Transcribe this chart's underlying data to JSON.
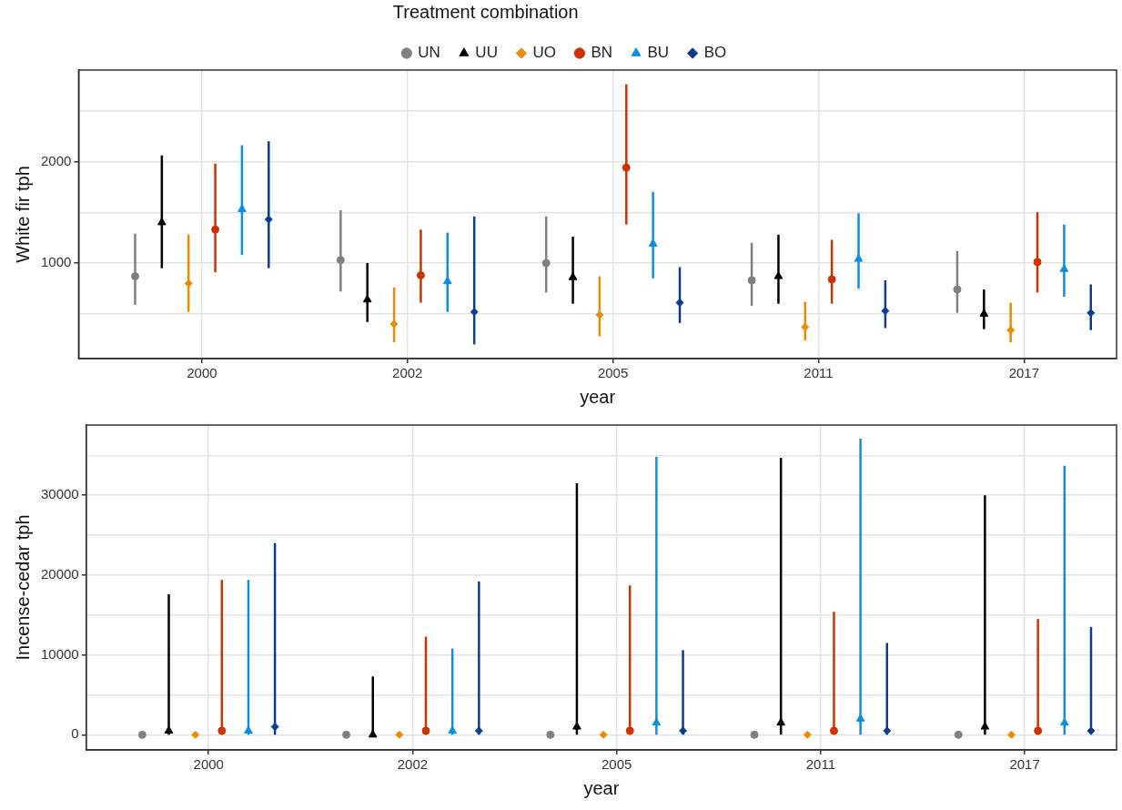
{
  "chart_data": [
    {
      "type": "scatter",
      "xlabel": "year",
      "ylabel": "White fir tph",
      "legend_title": "Treatment combination",
      "legend": "top",
      "grid": true,
      "categories": [
        "2000",
        "2002",
        "2005",
        "2011",
        "2017"
      ],
      "ylim": [
        60,
        2900
      ],
      "yticks": [
        {
          "value": 500,
          "label": null
        },
        1000,
        {
          "value": 1500,
          "label": null
        },
        2000,
        {
          "value": 2500,
          "label": null
        }
      ],
      "series": [
        {
          "name": "UN",
          "color": "#808080",
          "marker": "circle",
          "values": [
            870,
            1030,
            1000,
            830,
            740
          ],
          "errors": [
            [
              590,
              1290
            ],
            [
              720,
              1520
            ],
            [
              710,
              1460
            ],
            [
              580,
              1200
            ],
            [
              510,
              1120
            ]
          ]
        },
        {
          "name": "UU",
          "color": "#000000",
          "marker": "triangle",
          "values": [
            1400,
            640,
            860,
            870,
            500
          ],
          "errors": [
            [
              950,
              2060
            ],
            [
              420,
              1000
            ],
            [
              600,
              1260
            ],
            [
              600,
              1280
            ],
            [
              350,
              740
            ]
          ]
        },
        {
          "name": "UO",
          "color": "#ee8a00",
          "marker": "diamond",
          "values": [
            800,
            400,
            490,
            370,
            340
          ],
          "errors": [
            [
              520,
              1280
            ],
            [
              220,
              760
            ],
            [
              280,
              870
            ],
            [
              240,
              620
            ],
            [
              220,
              610
            ]
          ]
        },
        {
          "name": "BN",
          "color": "#cc3300",
          "marker": "circle",
          "values": [
            1330,
            880,
            1940,
            840,
            1010
          ],
          "errors": [
            [
              910,
              1980
            ],
            [
              610,
              1330
            ],
            [
              1380,
              2760
            ],
            [
              600,
              1230
            ],
            [
              710,
              1500
            ]
          ]
        },
        {
          "name": "BU",
          "color": "#0b8fe0",
          "marker": "triangle",
          "values": [
            1530,
            820,
            1190,
            1040,
            940
          ],
          "errors": [
            [
              1080,
              2160
            ],
            [
              520,
              1300
            ],
            [
              850,
              1700
            ],
            [
              750,
              1490
            ],
            [
              670,
              1380
            ]
          ]
        },
        {
          "name": "BO",
          "color": "#0a3d91",
          "marker": "diamond",
          "values": [
            1430,
            520,
            610,
            530,
            510
          ],
          "errors": [
            [
              950,
              2200
            ],
            [
              200,
              1460
            ],
            [
              410,
              960
            ],
            [
              360,
              830
            ],
            [
              340,
              790
            ]
          ]
        }
      ]
    },
    {
      "type": "scatter",
      "xlabel": "year",
      "ylabel": "Incense-cedar tph",
      "grid": true,
      "categories": [
        "2000",
        "2002",
        "2005",
        "2011",
        "2017"
      ],
      "ylim": [
        -1900,
        38800
      ],
      "yticks": [
        0,
        {
          "value": 5000,
          "label": null
        },
        10000,
        {
          "value": 15000,
          "label": null
        },
        20000,
        {
          "value": 25000,
          "label": null
        },
        30000,
        {
          "value": 35000,
          "label": null
        }
      ],
      "series": [
        {
          "color": "#808080",
          "marker": "circle",
          "values": [
            0,
            0,
            0,
            0,
            0
          ]
        },
        {
          "color": "#000000",
          "marker": "triangle",
          "values": [
            500,
            0,
            1000,
            1500,
            1000
          ],
          "errors": [
            [
              0,
              17600
            ],
            [
              0,
              7300
            ],
            [
              0,
              31500
            ],
            [
              0,
              34700
            ],
            [
              0,
              30000
            ]
          ]
        },
        {
          "color": "#ee8a00",
          "marker": "diamond",
          "values": [
            0,
            0,
            0,
            0,
            0
          ]
        },
        {
          "color": "#cc3300",
          "marker": "circle",
          "values": [
            500,
            500,
            500,
            500,
            500
          ],
          "errors": [
            [
              0,
              19400
            ],
            [
              0,
              12300
            ],
            [
              0,
              18700
            ],
            [
              0,
              15400
            ],
            [
              0,
              14500
            ]
          ]
        },
        {
          "color": "#0b8fe0",
          "marker": "triangle",
          "values": [
            500,
            500,
            1500,
            2000,
            1500
          ],
          "errors": [
            [
              0,
              19400
            ],
            [
              0,
              10800
            ],
            [
              0,
              34800
            ],
            [
              0,
              37100
            ],
            [
              0,
              33700
            ]
          ]
        },
        {
          "color": "#0a3d91",
          "marker": "diamond",
          "values": [
            1000,
            500,
            500,
            500,
            500
          ],
          "errors": [
            [
              0,
              24000
            ],
            [
              0,
              19200
            ],
            [
              0,
              10600
            ],
            [
              0,
              11500
            ],
            [
              0,
              13500
            ]
          ]
        }
      ]
    }
  ]
}
